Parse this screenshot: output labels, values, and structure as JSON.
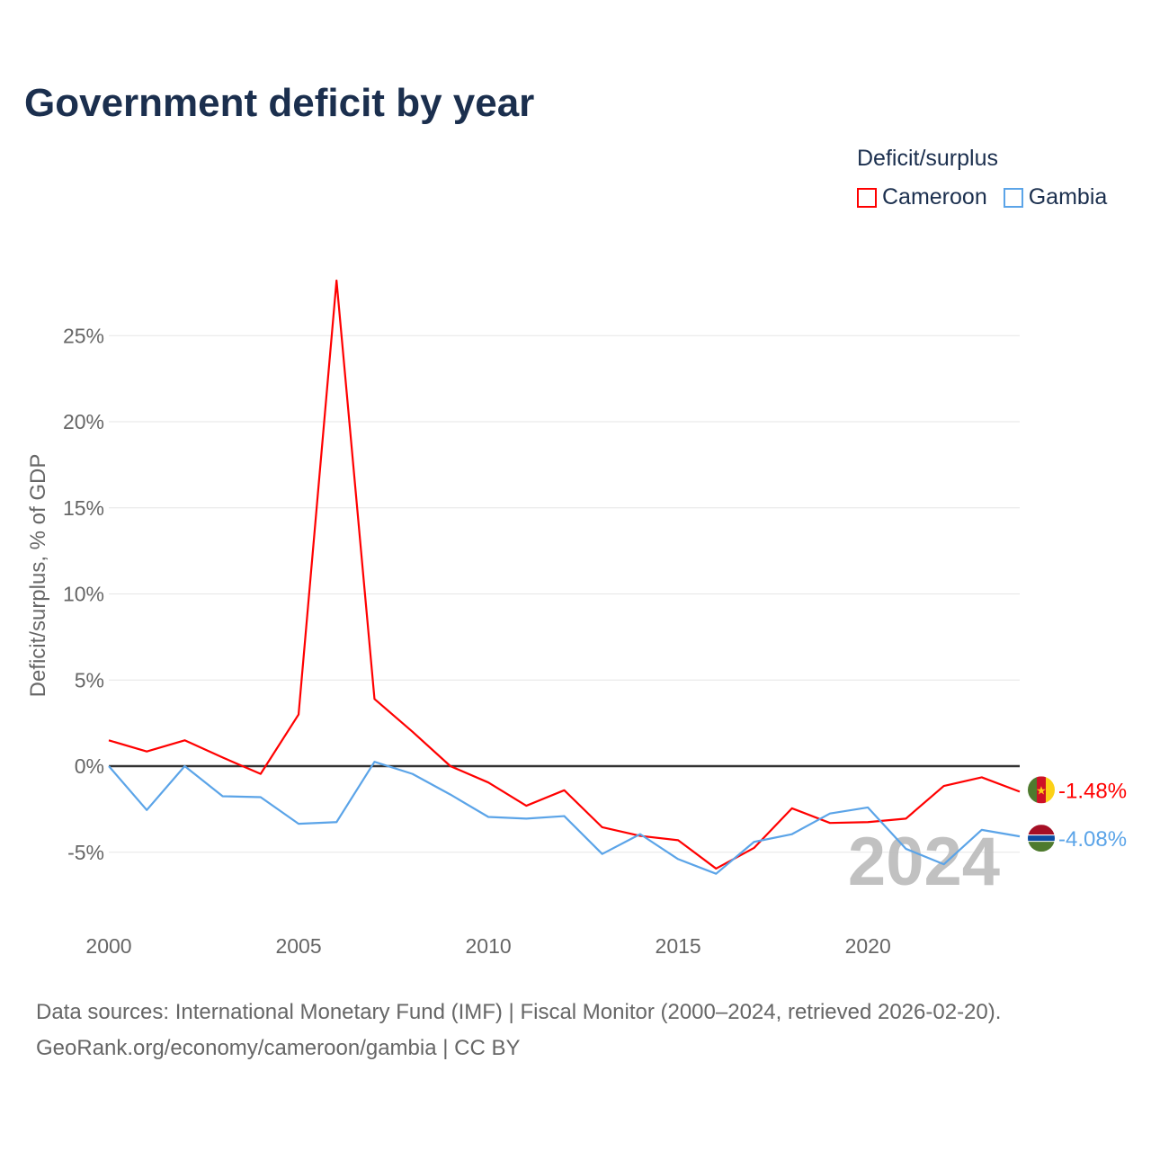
{
  "chart_data": {
    "type": "line",
    "title": "Government deficit by year",
    "ylabel": "Deficit/surplus, % of GDP",
    "xlabel": "",
    "legend_title": "Deficit/surplus",
    "legend_placement": "top-right",
    "x": [
      2000,
      2001,
      2002,
      2003,
      2004,
      2005,
      2006,
      2007,
      2008,
      2009,
      2010,
      2011,
      2012,
      2013,
      2014,
      2015,
      2016,
      2017,
      2018,
      2019,
      2020,
      2021,
      2022,
      2023,
      2024
    ],
    "xlim": [
      2000,
      2024
    ],
    "ylim": [
      -9,
      30
    ],
    "x_ticks": [
      2000,
      2005,
      2010,
      2015,
      2020
    ],
    "x_tick_labels": [
      "2000",
      "2005",
      "2010",
      "2015",
      "2020"
    ],
    "y_ticks": [
      -5,
      0,
      5,
      10,
      15,
      20,
      25
    ],
    "y_tick_labels": [
      "-5%",
      "0%",
      "5%",
      "10%",
      "15%",
      "20%",
      "25%"
    ],
    "grid": true,
    "series": [
      {
        "name": "Cameroon",
        "color": "#ff0000",
        "end_label": "-1.48%",
        "values": [
          1.5,
          0.85,
          1.5,
          0.5,
          -0.45,
          3.0,
          28.2,
          3.9,
          2.0,
          0.0,
          -0.95,
          -2.3,
          -1.4,
          -3.55,
          -4.05,
          -4.3,
          -5.95,
          -4.75,
          -2.45,
          -3.3,
          -3.25,
          -3.05,
          -1.15,
          -0.65,
          -1.48
        ]
      },
      {
        "name": "Gambia",
        "color": "#5ba4e8",
        "end_label": "-4.08%",
        "values": [
          0.0,
          -2.55,
          0.0,
          -1.75,
          -1.8,
          -3.35,
          -3.25,
          0.25,
          -0.45,
          -1.65,
          -2.95,
          -3.05,
          -2.9,
          -5.1,
          -3.95,
          -5.4,
          -6.25,
          -4.4,
          -3.95,
          -2.75,
          -2.4,
          -4.8,
          -5.7,
          -3.7,
          -4.08
        ]
      }
    ],
    "year_watermark": "2024"
  },
  "footer": {
    "line1": "Data sources: International Monetary Fund (IMF) | Fiscal Monitor (2000–2024, retrieved 2026-02-20).",
    "line2": "GeoRank.org/economy/cameroon/gambia | CC BY"
  }
}
